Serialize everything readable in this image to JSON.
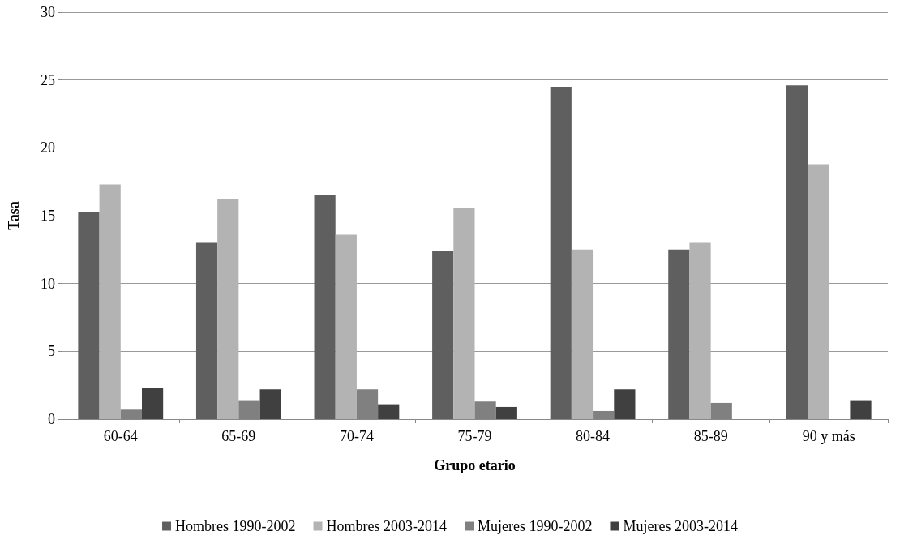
{
  "chart_data": {
    "type": "bar",
    "xlabel": "Grupo etario",
    "ylabel": "Tasa",
    "categories": [
      "60-64",
      "65-69",
      "70-74",
      "75-79",
      "80-84",
      "85-89",
      "90 y más"
    ],
    "series": [
      {
        "name": "Hombres 1990-2002",
        "color": "#5f5f5f",
        "values": [
          15.3,
          13.0,
          16.5,
          12.4,
          24.5,
          12.5,
          24.6
        ]
      },
      {
        "name": "Hombres 2003-2014",
        "color": "#b3b3b3",
        "values": [
          17.3,
          16.2,
          13.6,
          15.6,
          12.5,
          13.0,
          18.8
        ]
      },
      {
        "name": "Mujeres 1990-2002",
        "color": "#808080",
        "values": [
          0.7,
          1.4,
          2.2,
          1.3,
          0.6,
          1.2,
          null
        ]
      },
      {
        "name": "Mujeres 2003-2014",
        "color": "#404040",
        "values": [
          2.3,
          2.2,
          1.1,
          0.9,
          2.2,
          null,
          1.4
        ]
      }
    ],
    "ylim": [
      0,
      30
    ],
    "yticks": [
      0,
      5,
      10,
      15,
      20,
      25,
      30
    ],
    "grid": "y",
    "legend": "bottom"
  }
}
